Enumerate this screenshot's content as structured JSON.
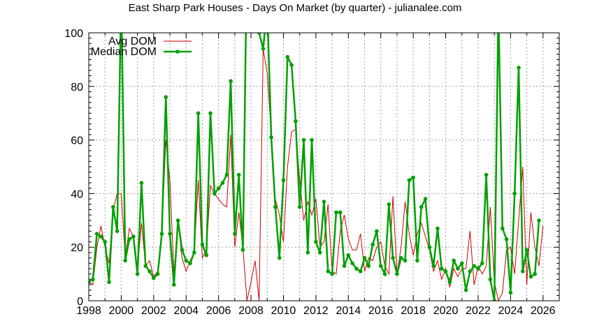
{
  "chart_data": {
    "type": "line",
    "title": "East Sharp Park Houses - Days On Market (by quarter) - julianalee.com",
    "xlabel": "",
    "ylabel": "",
    "xlim": [
      1998,
      2027
    ],
    "ylim": [
      0,
      100
    ],
    "x_ticks": [
      "1998",
      "2000",
      "2002",
      "2004",
      "2006",
      "2008",
      "2010",
      "2012",
      "2014",
      "2016",
      "2018",
      "2020",
      "2022",
      "2024",
      "2026"
    ],
    "y_ticks": [
      "0",
      "20",
      "40",
      "60",
      "80",
      "100"
    ],
    "grid": true,
    "legend_position": "top-left",
    "series": [
      {
        "name": "Avg DOM",
        "color": "#cc0000",
        "style": "thin-line",
        "points": [
          [
            1998.0,
            7
          ],
          [
            1998.25,
            6
          ],
          [
            1998.5,
            20
          ],
          [
            1998.75,
            28
          ],
          [
            1999.0,
            20
          ],
          [
            1999.25,
            14
          ],
          [
            1999.5,
            34
          ],
          [
            1999.75,
            40
          ],
          [
            2000.0,
            40
          ],
          [
            2000.25,
            16
          ],
          [
            2000.5,
            27
          ],
          [
            2000.75,
            24
          ],
          [
            2001.0,
            12
          ],
          [
            2001.25,
            29
          ],
          [
            2001.5,
            13
          ],
          [
            2001.75,
            15
          ],
          [
            2002.0,
            9
          ],
          [
            2002.25,
            11
          ],
          [
            2002.5,
            25
          ],
          [
            2002.75,
            60
          ],
          [
            2003.0,
            45
          ],
          [
            2003.25,
            10
          ],
          [
            2003.5,
            30
          ],
          [
            2003.75,
            16
          ],
          [
            2004.0,
            11
          ],
          [
            2004.25,
            15
          ],
          [
            2004.5,
            18
          ],
          [
            2004.75,
            45
          ],
          [
            2005.0,
            16
          ],
          [
            2005.25,
            19
          ],
          [
            2005.5,
            43
          ],
          [
            2005.75,
            40
          ],
          [
            2006.0,
            38
          ],
          [
            2006.25,
            36
          ],
          [
            2006.5,
            35
          ],
          [
            2006.75,
            62
          ],
          [
            2007.0,
            20
          ],
          [
            2007.25,
            33
          ],
          [
            2007.5,
            20
          ],
          [
            2007.75,
            0
          ],
          [
            2008.0,
            7
          ],
          [
            2008.25,
            15
          ],
          [
            2008.5,
            0
          ],
          [
            2008.75,
            94
          ],
          [
            2009.0,
            85
          ],
          [
            2009.25,
            62
          ],
          [
            2009.5,
            38
          ],
          [
            2009.75,
            32
          ],
          [
            2010.0,
            22
          ],
          [
            2010.25,
            50
          ],
          [
            2010.5,
            63
          ],
          [
            2010.75,
            64
          ],
          [
            2011.0,
            45
          ],
          [
            2011.25,
            30
          ],
          [
            2011.5,
            37
          ],
          [
            2011.75,
            32
          ],
          [
            2012.0,
            38
          ],
          [
            2012.25,
            20
          ],
          [
            2012.5,
            22
          ],
          [
            2012.75,
            36
          ],
          [
            2013.0,
            11
          ],
          [
            2013.25,
            10
          ],
          [
            2013.5,
            26
          ],
          [
            2013.75,
            32
          ],
          [
            2014.0,
            23
          ],
          [
            2014.25,
            19
          ],
          [
            2014.5,
            19
          ],
          [
            2014.75,
            25
          ],
          [
            2015.0,
            11
          ],
          [
            2015.25,
            16
          ],
          [
            2015.5,
            15
          ],
          [
            2015.75,
            20
          ],
          [
            2016.0,
            22
          ],
          [
            2016.25,
            13
          ],
          [
            2016.5,
            10
          ],
          [
            2016.75,
            39
          ],
          [
            2017.0,
            10
          ],
          [
            2017.25,
            20
          ],
          [
            2017.5,
            37
          ],
          [
            2017.75,
            25
          ],
          [
            2018.0,
            17
          ],
          [
            2018.25,
            25
          ],
          [
            2018.5,
            29
          ],
          [
            2018.75,
            24
          ],
          [
            2019.0,
            19
          ],
          [
            2019.25,
            11
          ],
          [
            2019.5,
            15
          ],
          [
            2019.75,
            8
          ],
          [
            2020.0,
            12
          ],
          [
            2020.25,
            5
          ],
          [
            2020.5,
            12
          ],
          [
            2020.75,
            9
          ],
          [
            2021.0,
            12
          ],
          [
            2021.25,
            12
          ],
          [
            2021.5,
            26
          ],
          [
            2021.75,
            6
          ],
          [
            2022.0,
            13
          ],
          [
            2022.25,
            10
          ],
          [
            2022.5,
            13
          ],
          [
            2022.75,
            35
          ],
          [
            2023.0,
            7
          ],
          [
            2023.25,
            0
          ],
          [
            2023.5,
            3
          ],
          [
            2023.75,
            19
          ],
          [
            2024.0,
            20
          ],
          [
            2024.25,
            10
          ],
          [
            2024.5,
            30
          ],
          [
            2024.75,
            50
          ],
          [
            2025.0,
            6
          ],
          [
            2025.25,
            33
          ],
          [
            2025.5,
            20
          ],
          [
            2025.75,
            13
          ],
          [
            2026.0,
            28
          ]
        ]
      },
      {
        "name": "Median DOM",
        "color": "#00a000",
        "style": "thick-line-points",
        "points": [
          [
            1998.0,
            7
          ],
          [
            1998.25,
            8
          ],
          [
            1998.5,
            25
          ],
          [
            1998.75,
            24
          ],
          [
            1999.0,
            22
          ],
          [
            1999.25,
            7
          ],
          [
            1999.5,
            35
          ],
          [
            1999.75,
            26
          ],
          [
            2000.0,
            115
          ],
          [
            2000.25,
            15
          ],
          [
            2000.5,
            23
          ],
          [
            2000.75,
            24
          ],
          [
            2001.0,
            10
          ],
          [
            2001.25,
            44
          ],
          [
            2001.5,
            13
          ],
          [
            2001.75,
            11
          ],
          [
            2002.0,
            8.5
          ],
          [
            2002.25,
            10
          ],
          [
            2002.5,
            25
          ],
          [
            2002.75,
            76
          ],
          [
            2003.0,
            25
          ],
          [
            2003.25,
            6
          ],
          [
            2003.5,
            30
          ],
          [
            2003.75,
            19
          ],
          [
            2004.0,
            15
          ],
          [
            2004.25,
            14
          ],
          [
            2004.5,
            18
          ],
          [
            2004.75,
            70
          ],
          [
            2005.0,
            21
          ],
          [
            2005.25,
            17
          ],
          [
            2005.5,
            70
          ],
          [
            2005.75,
            40
          ],
          [
            2006.0,
            42
          ],
          [
            2006.25,
            44
          ],
          [
            2006.5,
            47
          ],
          [
            2006.75,
            82
          ],
          [
            2007.0,
            25
          ],
          [
            2007.25,
            47
          ],
          [
            2007.5,
            19
          ],
          [
            2007.75,
            130
          ],
          [
            2008.0,
            110
          ],
          [
            2008.25,
            105
          ],
          [
            2008.5,
            100
          ],
          [
            2008.75,
            94
          ],
          [
            2009.0,
            110
          ],
          [
            2009.25,
            61
          ],
          [
            2009.5,
            35
          ],
          [
            2009.75,
            16
          ],
          [
            2010.0,
            45
          ],
          [
            2010.25,
            91
          ],
          [
            2010.5,
            88
          ],
          [
            2010.75,
            67
          ],
          [
            2011.0,
            35
          ],
          [
            2011.25,
            60
          ],
          [
            2011.5,
            18
          ],
          [
            2011.75,
            60
          ],
          [
            2012.0,
            22
          ],
          [
            2012.25,
            18
          ],
          [
            2012.5,
            37
          ],
          [
            2012.75,
            11
          ],
          [
            2013.0,
            10
          ],
          [
            2013.25,
            33
          ],
          [
            2013.5,
            33
          ],
          [
            2013.75,
            13
          ],
          [
            2014.0,
            17
          ],
          [
            2014.25,
            14
          ],
          [
            2014.5,
            12
          ],
          [
            2014.75,
            11
          ],
          [
            2015.0,
            16
          ],
          [
            2015.25,
            13
          ],
          [
            2015.5,
            21
          ],
          [
            2015.75,
            26
          ],
          [
            2016.0,
            13
          ],
          [
            2016.25,
            10
          ],
          [
            2016.5,
            36
          ],
          [
            2016.75,
            16
          ],
          [
            2017.0,
            10
          ],
          [
            2017.25,
            16
          ],
          [
            2017.5,
            15
          ],
          [
            2017.75,
            45
          ],
          [
            2018.0,
            46
          ],
          [
            2018.25,
            15
          ],
          [
            2018.5,
            35
          ],
          [
            2018.75,
            38
          ],
          [
            2019.0,
            20
          ],
          [
            2019.25,
            13
          ],
          [
            2019.5,
            27
          ],
          [
            2019.75,
            12
          ],
          [
            2020.0,
            11
          ],
          [
            2020.25,
            7
          ],
          [
            2020.5,
            15
          ],
          [
            2020.75,
            12
          ],
          [
            2021.0,
            14
          ],
          [
            2021.25,
            4
          ],
          [
            2021.5,
            11
          ],
          [
            2021.75,
            13
          ],
          [
            2022.0,
            12
          ],
          [
            2022.25,
            14
          ],
          [
            2022.5,
            47
          ],
          [
            2022.75,
            8
          ],
          [
            2023.0,
            0
          ],
          [
            2023.25,
            110
          ],
          [
            2023.5,
            27
          ],
          [
            2023.75,
            23
          ],
          [
            2024.0,
            3
          ],
          [
            2024.25,
            40
          ],
          [
            2024.5,
            87
          ],
          [
            2024.75,
            11
          ],
          [
            2025.0,
            19
          ],
          [
            2025.25,
            9
          ],
          [
            2025.5,
            10
          ],
          [
            2025.75,
            30
          ]
        ]
      }
    ]
  }
}
